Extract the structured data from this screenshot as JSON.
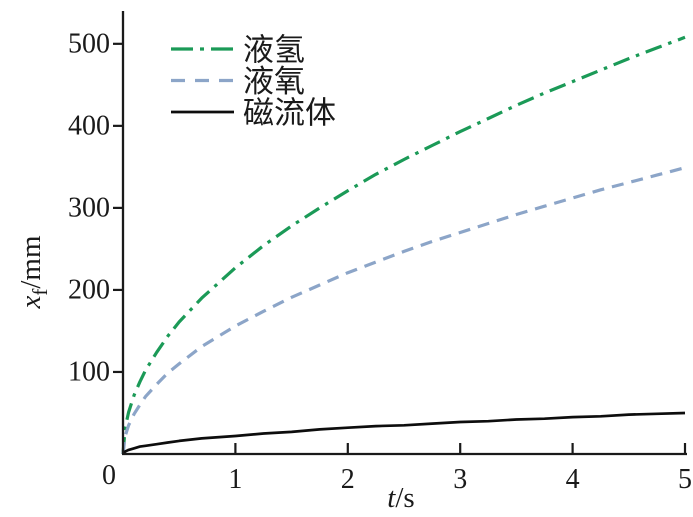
{
  "figure": {
    "background": "#ffffff",
    "text_color": "#1a1a1a",
    "axis_color": "#1a1a1a"
  },
  "chart_data": {
    "type": "line",
    "title": "",
    "xlabel": "t/s",
    "ylabel": "xf/mm",
    "xlabel_parts": {
      "symbol": "t",
      "unit": "s"
    },
    "ylabel_parts": {
      "symbol": "x",
      "subscript": "f",
      "unit": "mm"
    },
    "xlim": [
      0,
      5
    ],
    "ylim": [
      0,
      540
    ],
    "x_ticks": [
      0,
      1,
      2,
      3,
      4,
      5
    ],
    "y_ticks": [
      0,
      100,
      200,
      300,
      400,
      500
    ],
    "origin_label": "0",
    "grid": false,
    "legend_position": "top-left-inside",
    "x": [
      0,
      0.02,
      0.05,
      0.1,
      0.15,
      0.2,
      0.3,
      0.4,
      0.5,
      0.7,
      1,
      1.25,
      1.5,
      1.75,
      2,
      2.25,
      2.5,
      2.75,
      3,
      3.25,
      3.5,
      3.75,
      4,
      4.25,
      4.5,
      4.75,
      5
    ],
    "series": [
      {
        "name": "液氢",
        "color": "#1b9a57",
        "style": "dash-dot",
        "width": 3.2,
        "values": [
          0,
          32,
          51,
          72,
          88,
          102,
          124,
          144,
          161,
          190,
          227,
          254,
          278,
          300,
          321,
          341,
          359,
          376,
          393,
          409,
          425,
          440,
          454,
          468,
          482,
          495,
          508
        ]
      },
      {
        "name": "液氧",
        "color": "#8ca5c8",
        "style": "dashed",
        "width": 3.2,
        "values": [
          0,
          22,
          35,
          49,
          60,
          70,
          85,
          99,
          110,
          131,
          156,
          174,
          191,
          206,
          221,
          234,
          247,
          259,
          270,
          281,
          292,
          302,
          312,
          322,
          331,
          340,
          349
        ]
      },
      {
        "name": "磁流体",
        "color": "#0d0d0d",
        "style": "solid",
        "width": 2.7,
        "values": [
          0,
          3,
          5,
          7,
          9,
          10,
          12,
          14,
          16,
          19,
          22,
          25,
          27,
          30,
          32,
          34,
          35,
          37,
          39,
          40,
          42,
          43,
          45,
          46,
          48,
          49,
          50
        ]
      }
    ]
  }
}
